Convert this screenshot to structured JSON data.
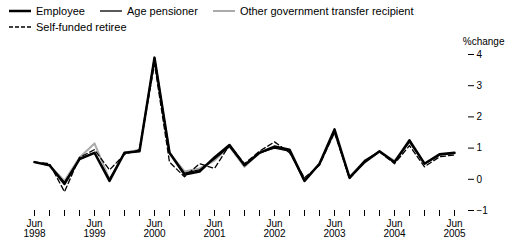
{
  "chart_data": {
    "type": "line",
    "y_label": "%change",
    "categories": [
      "Jun\n1998",
      null,
      null,
      null,
      "Jun\n1999",
      null,
      null,
      null,
      "Jun\n2000",
      null,
      null,
      null,
      "Jun\n2001",
      null,
      null,
      null,
      "Jun\n2002",
      null,
      null,
      null,
      "Jun\n2003",
      null,
      null,
      null,
      "Jun\n2004",
      null,
      null,
      null,
      "Jun\n2005"
    ],
    "series": [
      {
        "name": "Employee",
        "color": "#000000",
        "line_style": "solid",
        "values": [
          0.55,
          0.45,
          -0.15,
          0.65,
          0.85,
          -0.05,
          0.85,
          0.9,
          3.9,
          0.85,
          0.15,
          0.25,
          0.7,
          1.1,
          0.45,
          0.85,
          1.05,
          0.95,
          -0.05,
          0.5,
          1.6,
          0.05,
          0.55,
          0.9,
          0.55,
          1.25,
          0.5,
          0.8,
          0.85
        ]
      },
      {
        "name": "Age pensioner",
        "color": "#000000",
        "line_style": "solid",
        "values": [
          0.55,
          0.45,
          -0.1,
          0.65,
          0.85,
          0.0,
          0.85,
          0.9,
          3.9,
          0.85,
          0.2,
          0.3,
          0.65,
          1.05,
          0.45,
          0.85,
          1.0,
          0.9,
          -0.05,
          0.5,
          1.55,
          0.05,
          0.6,
          0.9,
          0.55,
          1.2,
          0.5,
          0.78,
          0.83
        ]
      },
      {
        "name": "Other government transfer recipient",
        "color": "#aaaaaa",
        "line_style": "solid",
        "values": [
          0.55,
          0.45,
          -0.05,
          0.7,
          1.15,
          0.0,
          0.85,
          0.95,
          3.85,
          0.85,
          0.25,
          0.35,
          0.6,
          1.05,
          0.4,
          0.85,
          1.05,
          0.9,
          -0.05,
          0.5,
          1.5,
          0.08,
          0.6,
          0.88,
          0.6,
          1.18,
          0.5,
          0.78,
          0.83
        ]
      },
      {
        "name": "Self-funded retiree",
        "color": "#000000",
        "line_style": "dashed",
        "values": [
          0.55,
          0.5,
          -0.4,
          0.7,
          0.95,
          0.3,
          0.8,
          0.95,
          3.7,
          0.55,
          0.08,
          0.5,
          0.35,
          1.1,
          0.5,
          0.9,
          1.2,
          0.85,
          0.05,
          0.45,
          1.5,
          0.02,
          0.55,
          0.88,
          0.5,
          1.08,
          0.4,
          0.72,
          0.78
        ]
      }
    ],
    "ylim": [
      -1,
      4
    ],
    "yticks": [
      -1,
      0,
      1,
      2,
      3,
      4
    ],
    "grid": false,
    "legend": "top"
  }
}
